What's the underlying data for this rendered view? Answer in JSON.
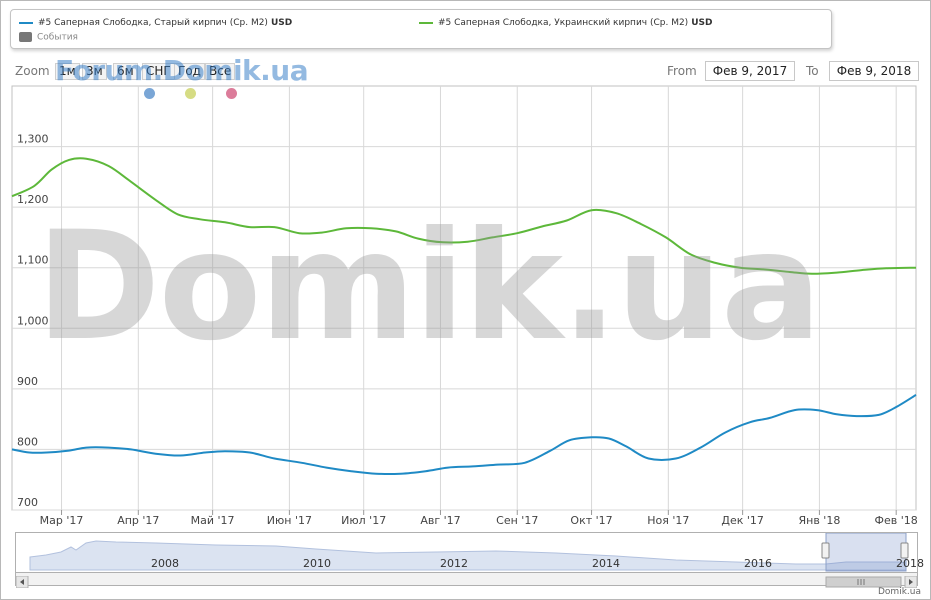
{
  "legend": {
    "series": [
      {
        "label": "#5 Саперная Слободка, Старый кирпич (Ср. M2)",
        "unit": "USD",
        "color": "#1f8ac5"
      },
      {
        "label": "#5 Саперная Слободка, Украинский кирпич (Ср. M2)",
        "unit": "USD",
        "color": "#5db83a"
      }
    ],
    "events_label": "События"
  },
  "zoom": {
    "label": "Zoom",
    "buttons": [
      "1м",
      "3м",
      "6м",
      "СНГ",
      "Год",
      "Все"
    ]
  },
  "watermark_forum": "Forum.Domik.ua",
  "watermark_big": "Domik.ua",
  "range": {
    "from_label": "From",
    "from_value": "Фев 9, 2017",
    "to_label": "To",
    "to_value": "Фев 9, 2018"
  },
  "markers": [
    {
      "color": "#7aa6d6"
    },
    {
      "color": "#d6dc84"
    },
    {
      "color": "#dc7c9a"
    }
  ],
  "navigator": {
    "years": [
      "2008",
      "2010",
      "2012",
      "2014",
      "2016",
      "2018"
    ]
  },
  "credit": "Domik.ua",
  "chart_data": {
    "type": "line",
    "ylim": [
      700,
      1400
    ],
    "yticks": [
      700,
      800,
      900,
      1000,
      1100,
      1200,
      1300
    ],
    "ytick_labels": [
      "700",
      "800",
      "900",
      "1,000",
      "1,100",
      "1,200",
      "1,300"
    ],
    "xlim": [
      "2017-02-09",
      "2018-02-09"
    ],
    "xticks": [
      {
        "date": "2017-03-01",
        "label": "Мар '17"
      },
      {
        "date": "2017-04-01",
        "label": "Апр '17"
      },
      {
        "date": "2017-05-01",
        "label": "Май '17"
      },
      {
        "date": "2017-06-01",
        "label": "Июн '17"
      },
      {
        "date": "2017-07-01",
        "label": "Июл '17"
      },
      {
        "date": "2017-08-01",
        "label": "Авг '17"
      },
      {
        "date": "2017-09-01",
        "label": "Сен '17"
      },
      {
        "date": "2017-10-01",
        "label": "Окт '17"
      },
      {
        "date": "2017-11-01",
        "label": "Ноя '17"
      },
      {
        "date": "2017-12-01",
        "label": "Дек '17"
      },
      {
        "date": "2018-01-01",
        "label": "Янв '18"
      },
      {
        "date": "2018-02-01",
        "label": "Фев '18"
      }
    ],
    "grid": true,
    "series": [
      {
        "name": "#5 Саперная Слободка, Старый кирпич (Ср. M2)",
        "color": "#1f8ac5",
        "points": [
          [
            "2017-02-09",
            800
          ],
          [
            "2017-02-16",
            795
          ],
          [
            "2017-02-23",
            795
          ],
          [
            "2017-03-04",
            798
          ],
          [
            "2017-03-11",
            803
          ],
          [
            "2017-03-20",
            803
          ],
          [
            "2017-03-29",
            800
          ],
          [
            "2017-04-08",
            793
          ],
          [
            "2017-04-18",
            790
          ],
          [
            "2017-04-28",
            795
          ],
          [
            "2017-05-06",
            797
          ],
          [
            "2017-05-16",
            795
          ],
          [
            "2017-05-26",
            785
          ],
          [
            "2017-06-06",
            778
          ],
          [
            "2017-06-16",
            770
          ],
          [
            "2017-06-26",
            764
          ],
          [
            "2017-07-06",
            760
          ],
          [
            "2017-07-16",
            760
          ],
          [
            "2017-07-26",
            764
          ],
          [
            "2017-08-04",
            770
          ],
          [
            "2017-08-14",
            772
          ],
          [
            "2017-08-24",
            775
          ],
          [
            "2017-09-04",
            778
          ],
          [
            "2017-09-14",
            797
          ],
          [
            "2017-09-22",
            815
          ],
          [
            "2017-10-01",
            820
          ],
          [
            "2017-10-08",
            818
          ],
          [
            "2017-10-15",
            805
          ],
          [
            "2017-10-24",
            785
          ],
          [
            "2017-11-04",
            785
          ],
          [
            "2017-11-14",
            803
          ],
          [
            "2017-11-24",
            828
          ],
          [
            "2017-12-04",
            845
          ],
          [
            "2017-12-12",
            852
          ],
          [
            "2017-12-22",
            865
          ],
          [
            "2017-12-31",
            865
          ],
          [
            "2018-01-08",
            858
          ],
          [
            "2018-01-16",
            855
          ],
          [
            "2018-01-25",
            857
          ],
          [
            "2018-02-01",
            870
          ],
          [
            "2018-02-09",
            890
          ]
        ]
      },
      {
        "name": "#5 Саперная Слободка, Украинский кирпич (Ср. M2)",
        "color": "#5db83a",
        "points": [
          [
            "2017-02-09",
            1218
          ],
          [
            "2017-02-18",
            1235
          ],
          [
            "2017-02-25",
            1262
          ],
          [
            "2017-03-04",
            1278
          ],
          [
            "2017-03-11",
            1280
          ],
          [
            "2017-03-20",
            1268
          ],
          [
            "2017-03-29",
            1242
          ],
          [
            "2017-04-08",
            1212
          ],
          [
            "2017-04-17",
            1188
          ],
          [
            "2017-04-26",
            1180
          ],
          [
            "2017-05-06",
            1175
          ],
          [
            "2017-05-16",
            1167
          ],
          [
            "2017-05-26",
            1167
          ],
          [
            "2017-06-05",
            1157
          ],
          [
            "2017-06-14",
            1158
          ],
          [
            "2017-06-24",
            1165
          ],
          [
            "2017-07-04",
            1165
          ],
          [
            "2017-07-14",
            1160
          ],
          [
            "2017-07-23",
            1148
          ],
          [
            "2017-08-02",
            1142
          ],
          [
            "2017-08-12",
            1143
          ],
          [
            "2017-08-22",
            1150
          ],
          [
            "2017-09-01",
            1157
          ],
          [
            "2017-09-11",
            1168
          ],
          [
            "2017-09-21",
            1178
          ],
          [
            "2017-10-01",
            1195
          ],
          [
            "2017-10-11",
            1190
          ],
          [
            "2017-10-21",
            1172
          ],
          [
            "2017-10-31",
            1150
          ],
          [
            "2017-11-10",
            1122
          ],
          [
            "2017-11-20",
            1108
          ],
          [
            "2017-11-30",
            1100
          ],
          [
            "2017-12-10",
            1097
          ],
          [
            "2017-12-20",
            1093
          ],
          [
            "2017-12-29",
            1090
          ],
          [
            "2018-01-08",
            1092
          ],
          [
            "2018-01-18",
            1096
          ],
          [
            "2018-01-28",
            1099
          ],
          [
            "2018-02-09",
            1100
          ]
        ]
      }
    ]
  }
}
